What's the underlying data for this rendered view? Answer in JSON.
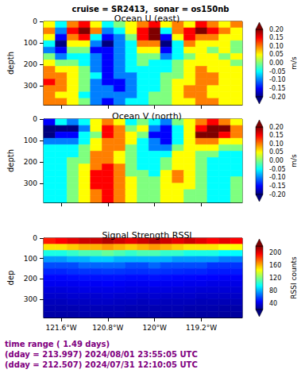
{
  "title": "cruise = SR2413,  sonar = os150nb",
  "footer": [
    "time range ( 1.49 days)",
    "(dday = 213.997) 2024/08/01 23:55:05 UTC",
    "(dday = 212.507) 2024/07/31 12:10:05 UTC"
  ],
  "chart_data": [
    {
      "type": "heatmap",
      "title": "Ocean U (east)",
      "ylabel": "depth",
      "tick_labels": "y",
      "x": [
        -121.8,
        -121.6,
        -121.4,
        -121.2,
        -121.0,
        -120.8,
        -120.6,
        -120.4,
        -120.2,
        -120.0,
        -119.8,
        -119.6,
        -119.4,
        -119.2,
        -119.0,
        -118.8,
        -118.6
      ],
      "y": [
        15,
        45,
        75,
        105,
        135,
        165,
        195,
        225,
        255,
        285,
        315,
        345,
        375
      ],
      "xlim": [
        -121.9,
        -118.5
      ],
      "ylim": [
        0,
        390
      ],
      "xticks": [
        {
          "value": -121.6,
          "label": "121.6°W"
        },
        {
          "value": -120.8,
          "label": "120.8°W"
        },
        {
          "value": -120,
          "label": "120°W"
        },
        {
          "value": -119.2,
          "label": "119.2°W"
        }
      ],
      "yticks": [
        0,
        100,
        200,
        300
      ],
      "cells": [
        [
          0.05,
          -0.05,
          0.1,
          0.15,
          0.05,
          -0.05,
          0.0,
          0.05,
          0.1,
          0.15,
          0.05,
          0.1,
          0.05,
          0.15,
          0.1,
          0.05,
          0.1
        ],
        [
          0.1,
          -0.1,
          0.15,
          0.2,
          0.1,
          -0.1,
          -0.05,
          0.05,
          0.15,
          0.2,
          -0.05,
          0.1,
          0.15,
          0.2,
          0.15,
          0.1,
          0.05
        ],
        [
          0.05,
          -0.15,
          0.1,
          0.15,
          -0.05,
          -0.15,
          -0.1,
          0.0,
          0.15,
          0.2,
          -0.15,
          0.05,
          0.15,
          0.1,
          0.1,
          0.05,
          0.05
        ],
        [
          -0.05,
          -0.2,
          0.05,
          0.05,
          -0.1,
          -0.2,
          -0.1,
          -0.05,
          0.1,
          0.1,
          -0.2,
          -0.05,
          0.1,
          0.05,
          0.05,
          0.05,
          0.0
        ],
        [
          -0.1,
          -0.15,
          0.0,
          0.0,
          -0.15,
          -0.15,
          -0.1,
          -0.05,
          0.05,
          0.05,
          -0.15,
          -0.05,
          0.05,
          0.05,
          0.0,
          0.05,
          0.0
        ],
        [
          0.0,
          -0.1,
          -0.05,
          -0.05,
          -0.1,
          -0.15,
          -0.1,
          -0.05,
          0.0,
          0.0,
          -0.1,
          -0.05,
          0.0,
          0.05,
          0.05,
          0.0,
          0.05
        ],
        [
          0.05,
          0.0,
          0.0,
          -0.05,
          -0.1,
          -0.15,
          -0.1,
          -0.05,
          0.0,
          -0.05,
          -0.05,
          0.0,
          0.05,
          0.05,
          0.05,
          0.05,
          0.0
        ],
        [
          0.1,
          0.05,
          0.05,
          0.0,
          -0.1,
          -0.15,
          -0.1,
          -0.05,
          -0.05,
          -0.05,
          -0.05,
          0.0,
          0.05,
          0.1,
          0.05,
          0.05,
          0.05
        ],
        [
          0.1,
          0.1,
          0.05,
          0.0,
          -0.05,
          -0.15,
          -0.1,
          -0.1,
          -0.05,
          -0.05,
          0.0,
          0.0,
          0.05,
          0.1,
          0.1,
          0.05,
          0.05
        ],
        [
          0.15,
          0.1,
          0.05,
          0.0,
          -0.1,
          -0.15,
          -0.15,
          -0.1,
          -0.05,
          -0.05,
          0.0,
          0.05,
          0.05,
          0.1,
          0.1,
          0.05,
          0.05
        ],
        [
          0.1,
          0.1,
          0.05,
          0.0,
          -0.1,
          -0.1,
          -0.15,
          -0.1,
          -0.05,
          -0.05,
          0.0,
          0.05,
          0.1,
          0.1,
          0.05,
          0.05,
          0.05
        ],
        [
          0.1,
          0.05,
          0.05,
          -0.05,
          -0.1,
          -0.1,
          -0.1,
          -0.1,
          -0.05,
          0.0,
          0.0,
          0.05,
          0.1,
          0.1,
          0.05,
          0.05,
          0.05
        ],
        [
          0.1,
          0.1,
          0.05,
          0.0,
          -0.1,
          -0.15,
          -0.1,
          -0.05,
          -0.05,
          0.0,
          0.0,
          0.05,
          0.05,
          0.1,
          0.1,
          0.05,
          0.05
        ]
      ],
      "colorbar": {
        "range": [
          -0.2,
          0.2
        ],
        "ticks": [
          {
            "value": -0.2,
            "label": "-0.20"
          },
          {
            "value": -0.15,
            "label": "-0.15"
          },
          {
            "value": -0.1,
            "label": "-0.10"
          },
          {
            "value": -0.05,
            "label": "-0.05"
          },
          {
            "value": 0,
            "label": "0.00"
          },
          {
            "value": 0.05,
            "label": "0.05"
          },
          {
            "value": 0.1,
            "label": "0.10"
          },
          {
            "value": 0.15,
            "label": "0.15"
          },
          {
            "value": 0.2,
            "label": "0.20"
          }
        ],
        "label": "m/s"
      }
    },
    {
      "type": "heatmap",
      "title": "Ocean V (north)",
      "ylabel": "depth",
      "tick_labels": "y",
      "x": [
        -121.8,
        -121.6,
        -121.4,
        -121.2,
        -121.0,
        -120.8,
        -120.6,
        -120.4,
        -120.2,
        -120.0,
        -119.8,
        -119.6,
        -119.4,
        -119.2,
        -119.0,
        -118.8,
        -118.6
      ],
      "y": [
        15,
        45,
        75,
        105,
        135,
        165,
        195,
        225,
        255,
        285,
        315,
        345,
        375
      ],
      "xlim": [
        -121.9,
        -118.5
      ],
      "ylim": [
        0,
        390
      ],
      "xticks": [
        {
          "value": -121.6,
          "label": "121.6°W"
        },
        {
          "value": -120.8,
          "label": "120.8°W"
        },
        {
          "value": -120,
          "label": "120°W"
        },
        {
          "value": -119.2,
          "label": "119.2°W"
        }
      ],
      "yticks": [
        0,
        100,
        200,
        300
      ],
      "cells": [
        [
          -0.15,
          -0.05,
          -0.1,
          -0.05,
          0.05,
          0.1,
          0.05,
          -0.05,
          0.0,
          -0.05,
          -0.1,
          0.0,
          0.05,
          0.1,
          0.15,
          0.1,
          0.05
        ],
        [
          -0.2,
          -0.2,
          -0.2,
          -0.1,
          0.05,
          0.15,
          0.1,
          0.0,
          0.05,
          -0.1,
          -0.15,
          -0.05,
          0.05,
          0.15,
          0.2,
          0.2,
          0.1
        ],
        [
          -0.2,
          -0.15,
          -0.15,
          -0.05,
          0.0,
          0.15,
          0.1,
          0.05,
          0.0,
          -0.15,
          -0.15,
          -0.05,
          0.05,
          0.2,
          0.2,
          0.15,
          0.1
        ],
        [
          -0.1,
          -0.1,
          -0.1,
          -0.05,
          0.05,
          0.1,
          0.1,
          0.05,
          -0.05,
          -0.1,
          -0.15,
          -0.05,
          0.05,
          0.1,
          0.1,
          0.05,
          0.05
        ],
        [
          -0.05,
          -0.05,
          -0.05,
          0.0,
          0.05,
          0.1,
          0.1,
          0.0,
          -0.05,
          -0.1,
          -0.1,
          0.0,
          0.05,
          0.05,
          0.05,
          0.0,
          0.0
        ],
        [
          -0.05,
          -0.05,
          -0.05,
          0.0,
          0.1,
          0.1,
          0.05,
          0.0,
          -0.05,
          -0.05,
          -0.05,
          0.05,
          0.05,
          0.0,
          0.0,
          -0.05,
          -0.05
        ],
        [
          -0.05,
          -0.05,
          0.0,
          0.0,
          0.1,
          0.1,
          0.05,
          0.0,
          -0.05,
          -0.05,
          0.0,
          0.05,
          0.05,
          0.0,
          -0.05,
          -0.05,
          -0.05
        ],
        [
          -0.05,
          -0.05,
          0.0,
          0.05,
          0.1,
          0.15,
          0.1,
          0.0,
          -0.05,
          -0.05,
          0.0,
          0.05,
          0.05,
          0.0,
          -0.05,
          -0.05,
          -0.05
        ],
        [
          -0.05,
          -0.05,
          0.0,
          0.05,
          0.15,
          0.15,
          0.1,
          0.0,
          0.0,
          -0.05,
          0.05,
          0.1,
          0.05,
          0.0,
          -0.05,
          -0.05,
          -0.05
        ],
        [
          -0.05,
          -0.05,
          0.0,
          0.05,
          0.15,
          0.15,
          0.1,
          0.05,
          0.0,
          0.0,
          0.05,
          0.1,
          0.05,
          0.0,
          -0.05,
          -0.05,
          0.0
        ],
        [
          -0.05,
          -0.05,
          0.0,
          0.05,
          0.15,
          0.15,
          0.1,
          0.05,
          0.0,
          0.0,
          0.05,
          0.05,
          0.05,
          0.0,
          -0.05,
          -0.05,
          0.0
        ],
        [
          -0.05,
          -0.05,
          0.0,
          0.05,
          0.1,
          0.15,
          0.1,
          0.05,
          0.0,
          0.0,
          0.05,
          0.05,
          0.0,
          0.0,
          -0.05,
          -0.05,
          0.0
        ],
        [
          -0.05,
          -0.05,
          0.0,
          0.05,
          0.1,
          0.15,
          0.1,
          0.05,
          0.0,
          0.0,
          0.05,
          0.05,
          0.0,
          0.0,
          -0.05,
          -0.05,
          0.0
        ]
      ],
      "colorbar": {
        "range": [
          -0.2,
          0.2
        ],
        "ticks": [
          {
            "value": -0.2,
            "label": "-0.20"
          },
          {
            "value": -0.15,
            "label": "-0.15"
          },
          {
            "value": -0.1,
            "label": "-0.10"
          },
          {
            "value": -0.05,
            "label": "-0.05"
          },
          {
            "value": 0,
            "label": "0.00"
          },
          {
            "value": 0.05,
            "label": "0.05"
          },
          {
            "value": 0.1,
            "label": "0.10"
          },
          {
            "value": 0.15,
            "label": "0.15"
          },
          {
            "value": 0.2,
            "label": "0.20"
          }
        ],
        "label": "m/s"
      }
    },
    {
      "type": "heatmap",
      "title": "Signal Strength RSSI",
      "ylabel": "dep",
      "x": [
        -121.8,
        -121.6,
        -121.4,
        -121.2,
        -121.0,
        -120.8,
        -120.6,
        -120.4,
        -120.2,
        -120.0,
        -119.8,
        -119.6,
        -119.4,
        -119.2,
        -119.0,
        -118.8,
        -118.6
      ],
      "y": [
        15,
        45,
        75,
        105,
        135,
        165,
        195,
        225,
        255,
        285,
        315,
        345,
        375
      ],
      "xlim": [
        -121.9,
        -118.5
      ],
      "ylim": [
        0,
        390
      ],
      "xticks": [
        {
          "value": -121.6,
          "label": "121.6°W"
        },
        {
          "value": -120.8,
          "label": "120.8°W"
        },
        {
          "value": -120,
          "label": "120°W"
        },
        {
          "value": -119.2,
          "label": "119.2°W"
        }
      ],
      "yticks": [
        0,
        100,
        200,
        300
      ],
      "cells": [
        [
          190,
          195,
          200,
          205,
          205,
          210,
          205,
          200,
          205,
          210,
          205,
          200,
          205,
          200,
          195,
          200,
          195
        ],
        [
          150,
          150,
          155,
          160,
          160,
          165,
          160,
          155,
          160,
          165,
          160,
          155,
          150,
          150,
          150,
          145,
          145
        ],
        [
          100,
          100,
          105,
          110,
          110,
          115,
          110,
          105,
          110,
          110,
          105,
          105,
          100,
          100,
          100,
          95,
          95
        ],
        [
          75,
          75,
          80,
          80,
          85,
          85,
          80,
          80,
          80,
          80,
          80,
          75,
          75,
          75,
          75,
          70,
          70
        ],
        [
          60,
          60,
          60,
          65,
          65,
          65,
          65,
          60,
          60,
          65,
          60,
          60,
          60,
          60,
          55,
          55,
          55
        ],
        [
          52,
          52,
          54,
          55,
          55,
          56,
          55,
          54,
          54,
          55,
          54,
          53,
          52,
          52,
          50,
          50,
          50
        ],
        [
          46,
          46,
          47,
          48,
          48,
          48,
          48,
          47,
          47,
          48,
          47,
          46,
          46,
          45,
          45,
          44,
          44
        ],
        [
          42,
          42,
          42,
          43,
          43,
          44,
          43,
          42,
          42,
          43,
          42,
          42,
          41,
          41,
          40,
          40,
          40
        ],
        [
          38,
          38,
          39,
          40,
          40,
          40,
          40,
          39,
          39,
          39,
          39,
          38,
          38,
          37,
          37,
          37,
          37
        ],
        [
          35,
          35,
          36,
          36,
          36,
          37,
          36,
          36,
          35,
          36,
          35,
          35,
          35,
          34,
          34,
          34,
          34
        ],
        [
          32,
          32,
          33,
          33,
          34,
          34,
          33,
          33,
          32,
          33,
          32,
          32,
          32,
          31,
          31,
          31,
          31
        ],
        [
          30,
          30,
          30,
          31,
          31,
          31,
          31,
          30,
          30,
          30,
          30,
          30,
          29,
          29,
          29,
          28,
          28
        ],
        [
          28,
          28,
          28,
          29,
          29,
          29,
          29,
          28,
          28,
          28,
          28,
          28,
          27,
          27,
          27,
          26,
          26
        ]
      ],
      "colorbar": {
        "range": [
          20,
          220
        ],
        "ticks": [
          40,
          80,
          120,
          160,
          200
        ],
        "label": "RSSI counts"
      }
    }
  ]
}
